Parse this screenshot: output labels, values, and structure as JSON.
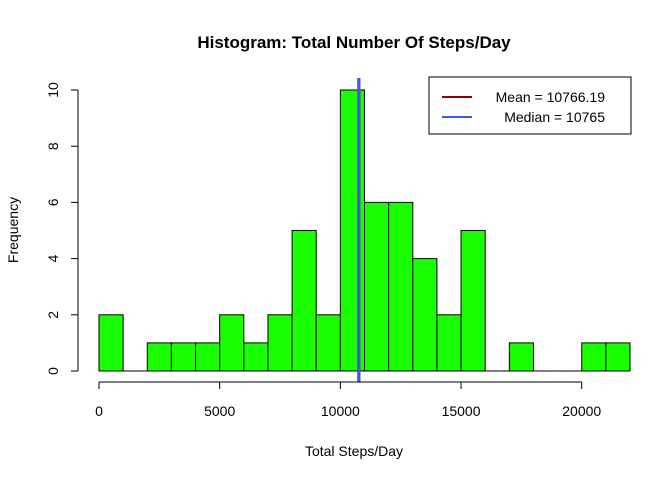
{
  "chart_data": {
    "type": "bar",
    "title": "Histogram: Total Number Of Steps/Day",
    "xlabel": "Total Steps/Day",
    "ylabel": "Frequency",
    "bin_width": 1000,
    "bins": [
      {
        "start": 0,
        "end": 1000,
        "count": 2
      },
      {
        "start": 1000,
        "end": 2000,
        "count": 0
      },
      {
        "start": 2000,
        "end": 3000,
        "count": 1
      },
      {
        "start": 3000,
        "end": 4000,
        "count": 1
      },
      {
        "start": 4000,
        "end": 5000,
        "count": 1
      },
      {
        "start": 5000,
        "end": 6000,
        "count": 2
      },
      {
        "start": 6000,
        "end": 7000,
        "count": 1
      },
      {
        "start": 7000,
        "end": 8000,
        "count": 2
      },
      {
        "start": 8000,
        "end": 9000,
        "count": 5
      },
      {
        "start": 9000,
        "end": 10000,
        "count": 2
      },
      {
        "start": 10000,
        "end": 11000,
        "count": 10
      },
      {
        "start": 11000,
        "end": 12000,
        "count": 6
      },
      {
        "start": 12000,
        "end": 13000,
        "count": 6
      },
      {
        "start": 13000,
        "end": 14000,
        "count": 4
      },
      {
        "start": 14000,
        "end": 15000,
        "count": 2
      },
      {
        "start": 15000,
        "end": 16000,
        "count": 5
      },
      {
        "start": 16000,
        "end": 17000,
        "count": 0
      },
      {
        "start": 17000,
        "end": 18000,
        "count": 1
      },
      {
        "start": 18000,
        "end": 19000,
        "count": 0
      },
      {
        "start": 19000,
        "end": 20000,
        "count": 0
      },
      {
        "start": 20000,
        "end": 21000,
        "count": 1
      },
      {
        "start": 21000,
        "end": 22000,
        "count": 1
      }
    ],
    "xlim": [
      0,
      22000
    ],
    "ylim": [
      0,
      10
    ],
    "x_ticks": [
      0,
      5000,
      10000,
      15000,
      20000
    ],
    "x_tick_labels": [
      "0",
      "5000",
      "10000",
      "15000",
      "20000"
    ],
    "y_ticks": [
      0,
      2,
      4,
      6,
      8,
      10
    ],
    "y_tick_labels": [
      "0",
      "2",
      "4",
      "6",
      "8",
      "10"
    ],
    "bar_color": "#1aff00",
    "bar_edge_color": "#000000",
    "reference_lines": [
      {
        "name": "Mean",
        "value": 10766.19,
        "color": "#8b0000"
      },
      {
        "name": "Median",
        "value": 10765,
        "color": "#3b5bdb"
      }
    ],
    "legend": {
      "placement": "top-right",
      "entries": [
        {
          "label": "Mean =  10766.19",
          "color": "#8b0000"
        },
        {
          "label": "Median =  10765",
          "color": "#3b5bdb"
        }
      ]
    },
    "grid": false
  }
}
